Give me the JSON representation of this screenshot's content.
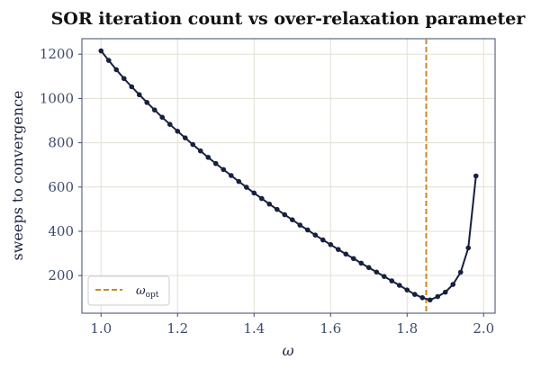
{
  "chart_data": {
    "type": "line",
    "title": "SOR iteration count vs over-relaxation parameter",
    "xlabel": "ω",
    "ylabel": "sweeps to convergence",
    "xlim": [
      0.95,
      2.03
    ],
    "ylim": [
      30,
      1270
    ],
    "xticks": [
      1.0,
      1.2,
      1.4,
      1.6,
      1.8,
      2.0
    ],
    "xtick_labels": [
      "1.0",
      "1.2",
      "1.4",
      "1.6",
      "1.8",
      "2.0"
    ],
    "yticks": [
      200,
      400,
      600,
      800,
      1000,
      1200
    ],
    "ytick_labels": [
      "200",
      "400",
      "600",
      "800",
      "1000",
      "1200"
    ],
    "grid": true,
    "legend_position": "lower-left",
    "colors": {
      "series": "#16203f",
      "reference": "#c98a2a",
      "grid": "#e3dfd4",
      "spine": "#3d4a6e"
    },
    "series": [
      {
        "x": [
          1.0,
          1.02,
          1.04,
          1.06,
          1.08,
          1.1,
          1.12,
          1.14,
          1.16,
          1.18,
          1.2,
          1.22,
          1.24,
          1.26,
          1.28,
          1.3,
          1.32,
          1.34,
          1.36,
          1.38,
          1.4,
          1.42,
          1.44,
          1.46,
          1.48,
          1.5,
          1.52,
          1.54,
          1.56,
          1.58,
          1.6,
          1.62,
          1.64,
          1.66,
          1.68,
          1.7,
          1.72,
          1.74,
          1.76,
          1.78,
          1.8,
          1.82,
          1.84,
          1.86,
          1.88,
          1.9,
          1.92,
          1.94,
          1.96,
          1.98
        ],
        "values": [
          1215,
          1172,
          1130,
          1090,
          1053,
          1017,
          982,
          948,
          915,
          883,
          852,
          822,
          792,
          763,
          734,
          706,
          679,
          652,
          625,
          599,
          573,
          548,
          523,
          499,
          475,
          452,
          428,
          406,
          383,
          361,
          340,
          318,
          297,
          277,
          256,
          236,
          216,
          196,
          176,
          156,
          135,
          115,
          100,
          90,
          105,
          125,
          160,
          215,
          325,
          650
        ]
      }
    ],
    "reference_lines": [
      {
        "orientation": "vertical",
        "x": 1.85,
        "label": "ω",
        "label_sub": "opt",
        "style": "dashed"
      }
    ]
  }
}
